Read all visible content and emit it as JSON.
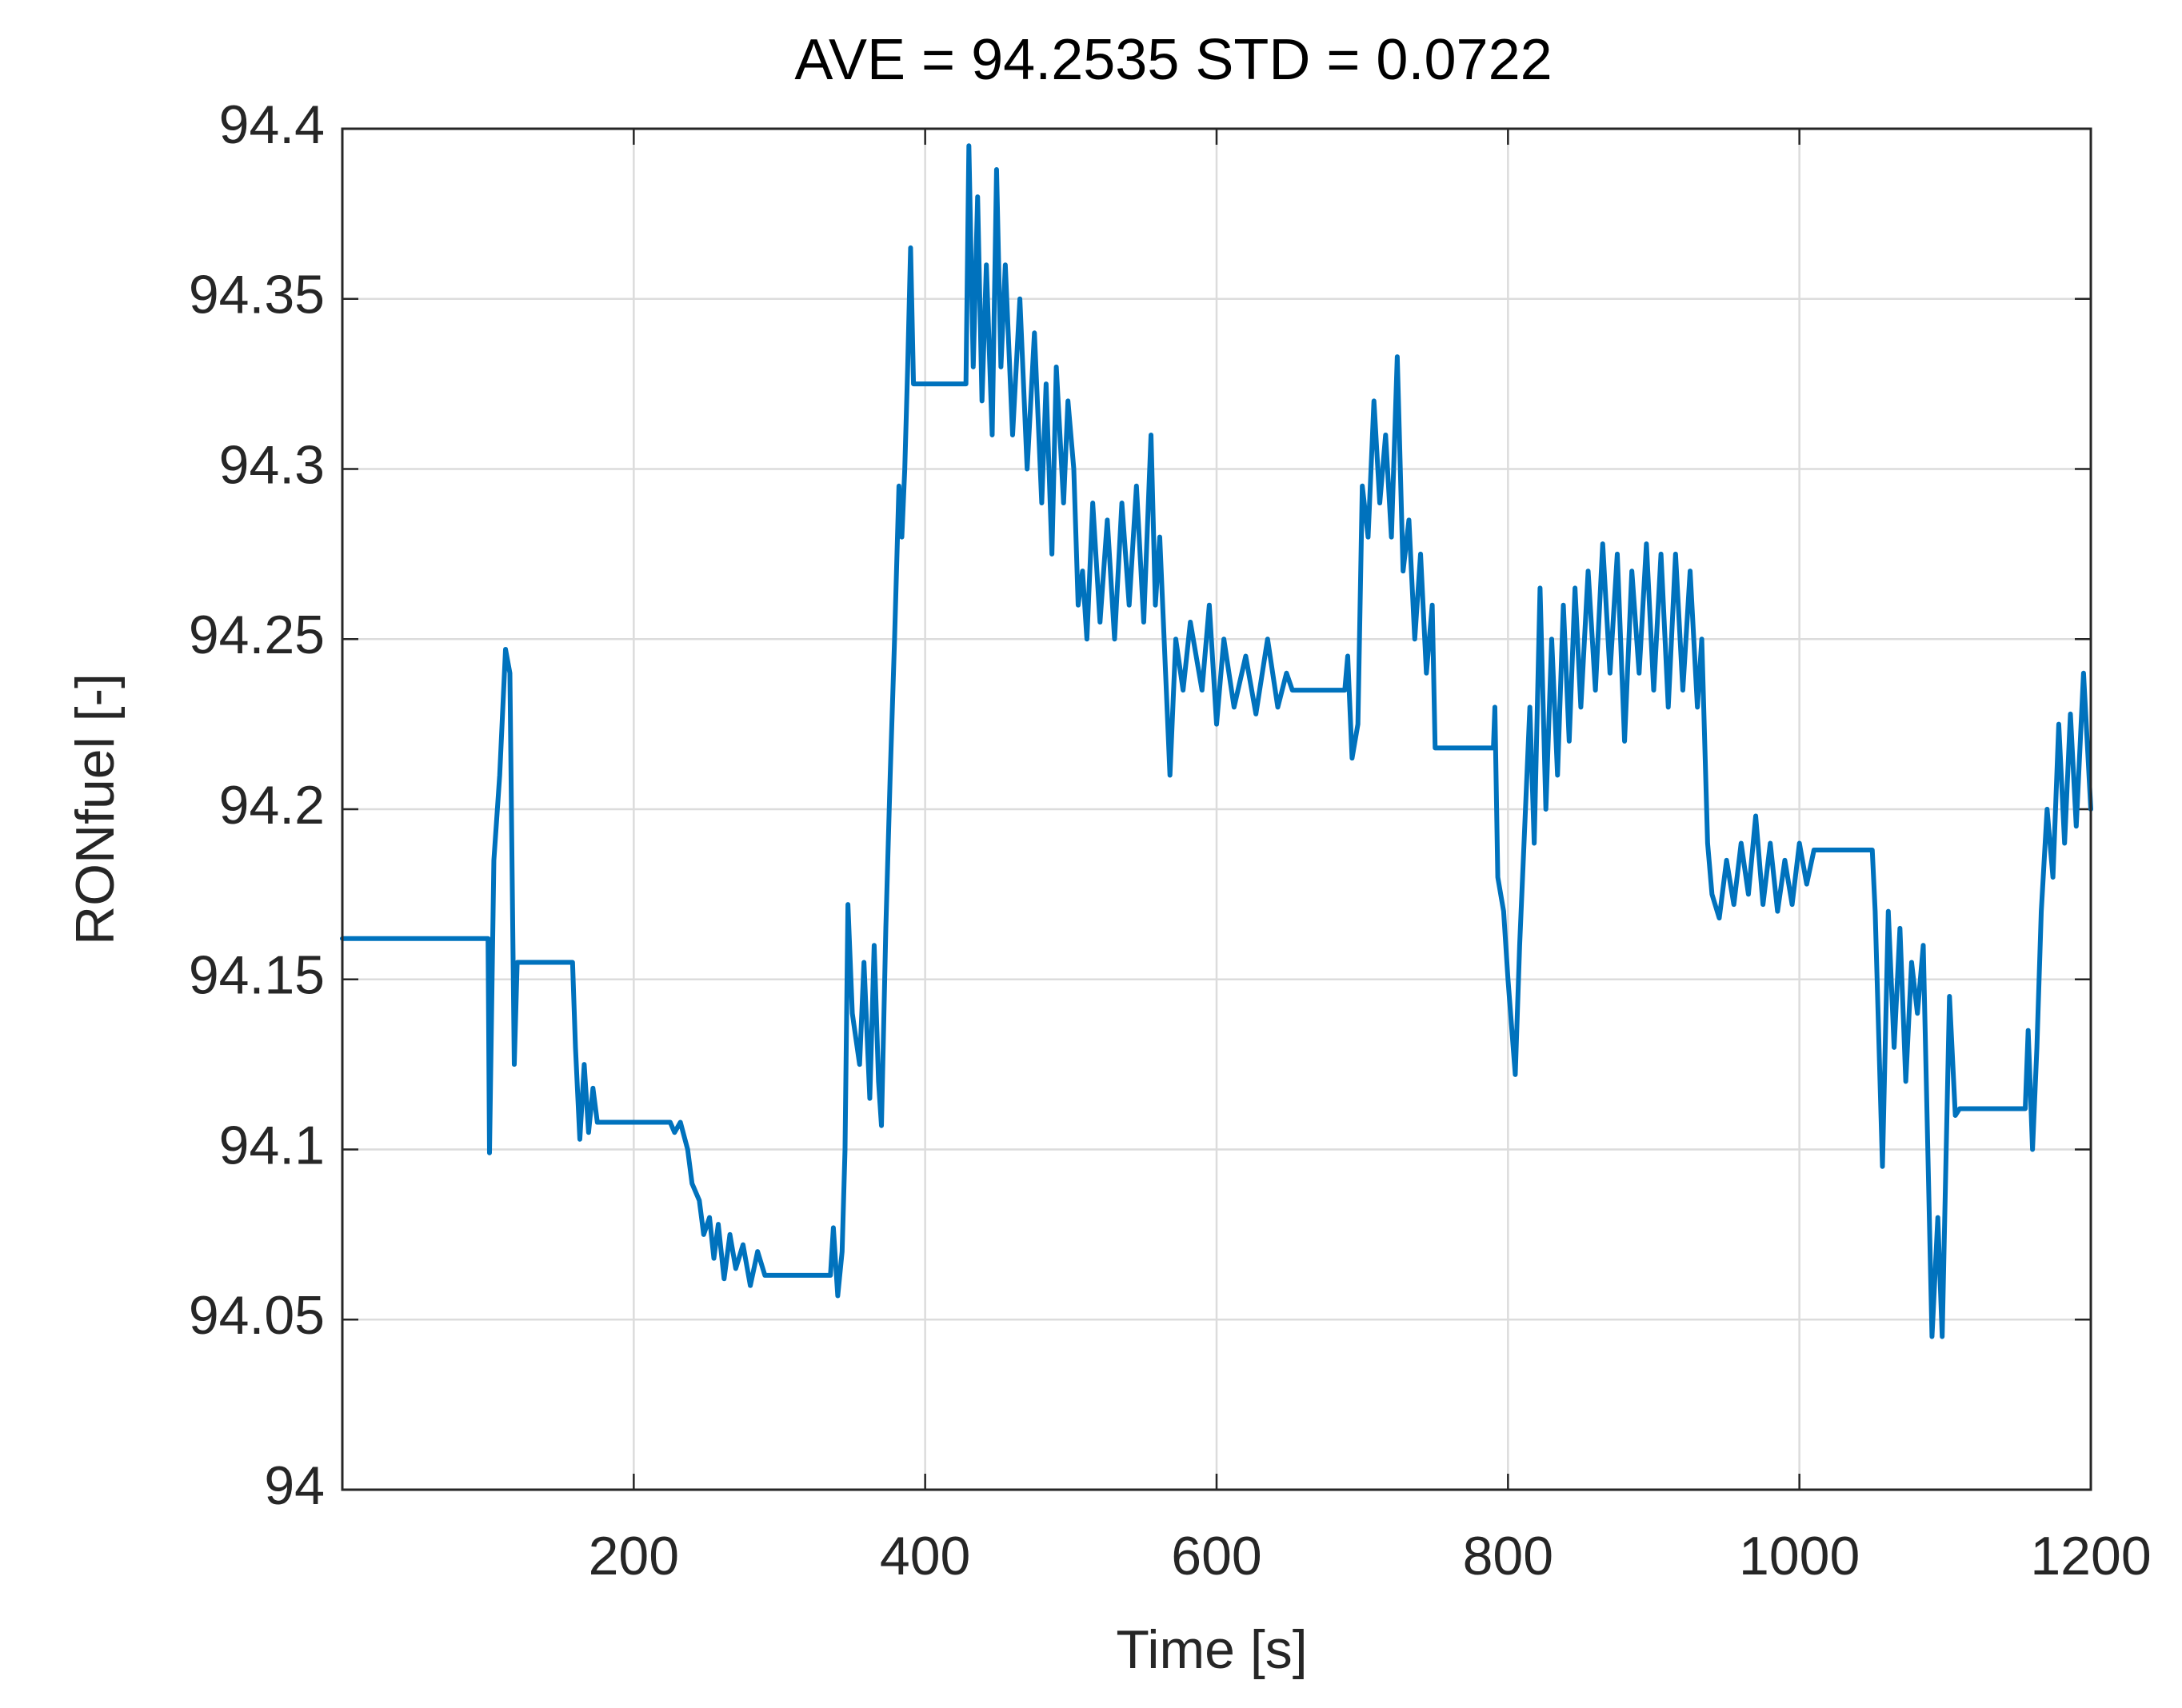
{
  "chart_data": {
    "type": "line",
    "title": "AVE = 94.2535 STD = 0.0722",
    "xlabel": "Time [s]",
    "ylabel": "RONfuel [-]",
    "color": "#0072bd",
    "grid": true,
    "xlim": [
      0,
      1200
    ],
    "ylim": [
      94,
      94.4
    ],
    "xticks": [
      200,
      400,
      600,
      800,
      1000,
      1200
    ],
    "yticks": [
      94,
      94.05,
      94.1,
      94.15,
      94.2,
      94.25,
      94.3,
      94.35,
      94.4
    ],
    "x": [
      0,
      100,
      101,
      104,
      108,
      112,
      115,
      118,
      120,
      158,
      160,
      163,
      166,
      169,
      172,
      175,
      225,
      228,
      232,
      237,
      240,
      245,
      248,
      252,
      255,
      258,
      262,
      266,
      270,
      275,
      280,
      285,
      290,
      335,
      337,
      340,
      343,
      345,
      347,
      350,
      355,
      358,
      362,
      365,
      368,
      370,
      373,
      376,
      379,
      382,
      384,
      386,
      388,
      390,
      392,
      428,
      430,
      433,
      436,
      439,
      442,
      446,
      449,
      452,
      455,
      460,
      465,
      470,
      475,
      480,
      483,
      487,
      490,
      495,
      498,
      502,
      505,
      508,
      511,
      515,
      520,
      525,
      530,
      535,
      540,
      545,
      550,
      555,
      558,
      561,
      565,
      568,
      572,
      577,
      582,
      590,
      595,
      600,
      605,
      612,
      620,
      627,
      635,
      642,
      648,
      652,
      688,
      690,
      693,
      697,
      700,
      704,
      708,
      712,
      716,
      720,
      724,
      728,
      732,
      736,
      740,
      744,
      748,
      750,
      790,
      791,
      793,
      797,
      800,
      805,
      808,
      812,
      815,
      818,
      822,
      826,
      830,
      834,
      838,
      842,
      846,
      850,
      855,
      860,
      865,
      870,
      875,
      880,
      885,
      890,
      895,
      900,
      905,
      910,
      915,
      920,
      925,
      930,
      933,
      937,
      940,
      945,
      950,
      955,
      960,
      965,
      970,
      975,
      980,
      985,
      990,
      995,
      1000,
      1005,
      1010,
      1050,
      1052,
      1057,
      1061,
      1065,
      1069,
      1073,
      1077,
      1081,
      1085,
      1091,
      1095,
      1098,
      1103,
      1107,
      1110,
      1155,
      1157,
      1160,
      1163,
      1166,
      1170,
      1174,
      1178,
      1182,
      1186,
      1190,
      1195,
      1200
    ],
    "values": [
      94.162,
      94.162,
      94.099,
      94.185,
      94.21,
      94.247,
      94.24,
      94.125,
      94.155,
      94.155,
      94.13,
      94.103,
      94.125,
      94.105,
      94.118,
      94.108,
      94.108,
      94.105,
      94.108,
      94.1,
      94.09,
      94.085,
      94.075,
      94.08,
      94.068,
      94.078,
      94.062,
      94.075,
      94.065,
      94.072,
      94.06,
      94.07,
      94.063,
      94.063,
      94.077,
      94.057,
      94.07,
      94.1,
      94.172,
      94.14,
      94.125,
      94.155,
      94.115,
      94.16,
      94.12,
      94.107,
      94.165,
      94.21,
      94.25,
      94.295,
      94.28,
      94.3,
      94.33,
      94.365,
      94.325,
      94.325,
      94.395,
      94.33,
      94.38,
      94.32,
      94.36,
      94.31,
      94.388,
      94.33,
      94.36,
      94.31,
      94.35,
      94.3,
      94.34,
      94.29,
      94.325,
      94.275,
      94.33,
      94.29,
      94.32,
      94.3,
      94.26,
      94.27,
      94.25,
      94.29,
      94.255,
      94.285,
      94.25,
      94.29,
      94.26,
      94.295,
      94.255,
      94.31,
      94.26,
      94.28,
      94.24,
      94.21,
      94.25,
      94.235,
      94.255,
      94.235,
      94.26,
      94.225,
      94.25,
      94.23,
      94.245,
      94.228,
      94.25,
      94.23,
      94.24,
      94.235,
      94.235,
      94.245,
      94.215,
      94.225,
      94.295,
      94.28,
      94.32,
      94.29,
      94.31,
      94.28,
      94.333,
      94.27,
      94.285,
      94.25,
      94.275,
      94.24,
      94.26,
      94.218,
      94.218,
      94.23,
      94.18,
      94.17,
      94.15,
      94.122,
      94.16,
      94.2,
      94.23,
      94.19,
      94.265,
      94.2,
      94.25,
      94.21,
      94.26,
      94.22,
      94.265,
      94.23,
      94.27,
      94.235,
      94.278,
      94.24,
      94.275,
      94.22,
      94.27,
      94.24,
      94.278,
      94.235,
      94.275,
      94.23,
      94.275,
      94.235,
      94.27,
      94.23,
      94.25,
      94.19,
      94.175,
      94.168,
      94.185,
      94.172,
      94.19,
      94.175,
      94.198,
      94.172,
      94.19,
      94.17,
      94.185,
      94.172,
      94.19,
      94.178,
      94.188,
      94.188,
      94.17,
      94.095,
      94.17,
      94.13,
      94.165,
      94.12,
      94.155,
      94.14,
      94.16,
      94.045,
      94.08,
      94.045,
      94.145,
      94.11,
      94.112,
      94.112,
      94.135,
      94.1,
      94.13,
      94.17,
      94.2,
      94.18,
      94.225,
      94.19,
      94.228,
      94.195,
      94.24,
      94.2
    ]
  }
}
